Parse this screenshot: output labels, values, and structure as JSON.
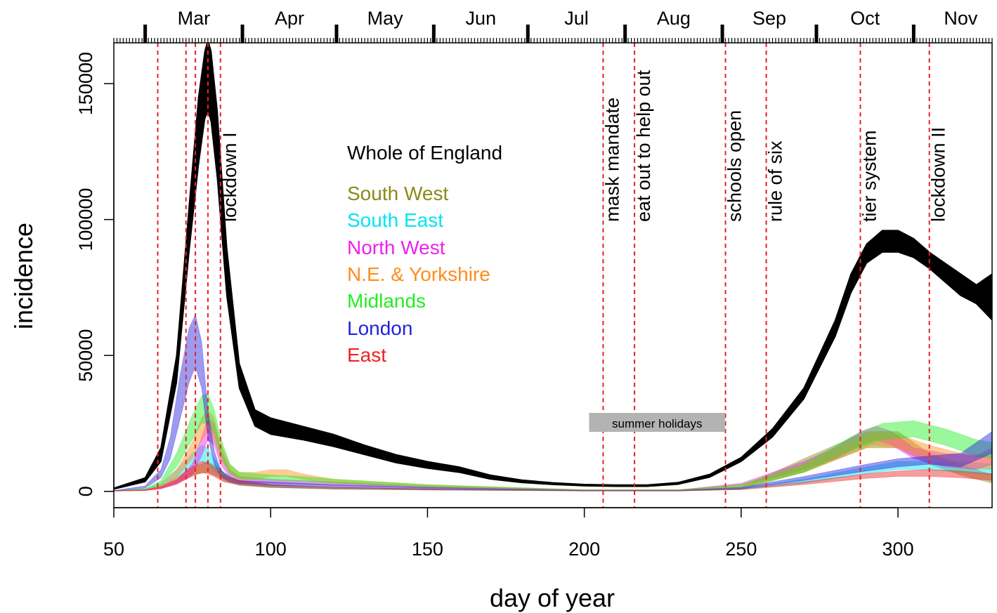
{
  "chart_data": {
    "type": "area",
    "title": "",
    "xlabel": "day of year",
    "ylabel": "incidence",
    "xlim": [
      50,
      330
    ],
    "ylim": [
      -6000,
      165000
    ],
    "x_ticks": [
      50,
      100,
      150,
      200,
      250,
      300
    ],
    "y_ticks": [
      0,
      50000,
      100000,
      150000
    ],
    "months": [
      {
        "label": "Mar",
        "start": 60
      },
      {
        "label": "Apr",
        "start": 91
      },
      {
        "label": "May",
        "start": 121
      },
      {
        "label": "Jun",
        "start": 152
      },
      {
        "label": "Jul",
        "start": 182
      },
      {
        "label": "Aug",
        "start": 213
      },
      {
        "label": "Sep",
        "start": 244
      },
      {
        "label": "Oct",
        "start": 274
      },
      {
        "label": "Nov",
        "start": 305
      }
    ],
    "events": [
      {
        "day": 64,
        "label": ""
      },
      {
        "day": 73,
        "label": ""
      },
      {
        "day": 76,
        "label": ""
      },
      {
        "day": 80,
        "label": ""
      },
      {
        "day": 84,
        "label": "lockdown I"
      },
      {
        "day": 206,
        "label": "mask mandate"
      },
      {
        "day": 216,
        "label": "eat out to help out"
      },
      {
        "day": 245,
        "label": "schools open"
      },
      {
        "day": 258,
        "label": "rule of six"
      },
      {
        "day": 288,
        "label": "tier system"
      },
      {
        "day": 310,
        "label": "lockdown II"
      }
    ],
    "shaded_period": {
      "label": "summer holidays",
      "start": 204,
      "end": 246
    },
    "legend_placement": "top-center",
    "series": [
      {
        "name": "Whole of England",
        "color": "#000000",
        "x": [
          50,
          60,
          65,
          70,
          74,
          77,
          79,
          80,
          81,
          83,
          86,
          90,
          95,
          100,
          110,
          120,
          130,
          140,
          150,
          160,
          170,
          180,
          190,
          200,
          210,
          220,
          230,
          240,
          250,
          260,
          270,
          280,
          285,
          290,
          295,
          300,
          305,
          310,
          315,
          320,
          325,
          330
        ],
        "upper": [
          1200,
          5000,
          16000,
          50000,
          105000,
          145000,
          162000,
          166000,
          162000,
          140000,
          90000,
          47000,
          30000,
          27000,
          24000,
          21000,
          17000,
          13500,
          11000,
          9000,
          6000,
          4200,
          3200,
          2600,
          2400,
          2400,
          3300,
          6300,
          12500,
          23000,
          38000,
          63000,
          80000,
          91000,
          96000,
          96000,
          93000,
          88000,
          84000,
          80000,
          76000,
          80000
        ],
        "lower": [
          800,
          3500,
          11000,
          40000,
          88000,
          120000,
          137000,
          140000,
          136000,
          115000,
          72000,
          38000,
          24000,
          21000,
          19000,
          16500,
          13500,
          10500,
          8500,
          7000,
          4500,
          3200,
          2500,
          2000,
          1800,
          1800,
          2600,
          5200,
          11000,
          20000,
          34000,
          57000,
          73000,
          84000,
          88000,
          88000,
          86000,
          82000,
          77000,
          72000,
          69000,
          63000
        ]
      },
      {
        "name": "South West",
        "color": "#8a8a1a",
        "x": [
          50,
          60,
          65,
          70,
          75,
          80,
          83,
          86,
          90,
          100,
          120,
          150,
          200,
          230,
          250,
          270,
          290,
          300,
          310,
          320,
          330
        ],
        "upper": [
          200,
          600,
          2000,
          5000,
          9000,
          11000,
          9000,
          6000,
          4000,
          2500,
          1500,
          900,
          300,
          300,
          1500,
          12000,
          22000,
          22000,
          14000,
          10000,
          6000
        ],
        "lower": [
          100,
          300,
          1200,
          3000,
          6000,
          7000,
          5500,
          3500,
          2200,
          1400,
          800,
          500,
          150,
          150,
          800,
          7000,
          16000,
          16000,
          10000,
          6000,
          3000
        ]
      },
      {
        "name": "South East",
        "color": "#00e5ee",
        "x": [
          50,
          60,
          65,
          70,
          75,
          78,
          80,
          82,
          85,
          90,
          100,
          120,
          150,
          200,
          230,
          250,
          270,
          290,
          300,
          310,
          320,
          330
        ],
        "upper": [
          200,
          800,
          3000,
          8000,
          14000,
          17000,
          16000,
          12000,
          7000,
          4000,
          2500,
          1500,
          800,
          300,
          300,
          1200,
          4500,
          9000,
          11000,
          11000,
          11000,
          10000
        ],
        "lower": [
          100,
          400,
          1800,
          5000,
          9000,
          11000,
          10000,
          7500,
          4500,
          2500,
          1500,
          900,
          500,
          150,
          150,
          700,
          3000,
          6500,
          8000,
          8000,
          7000,
          6000
        ]
      },
      {
        "name": "North West",
        "color": "#ee22ee",
        "x": [
          50,
          60,
          65,
          70,
          75,
          78,
          80,
          82,
          84,
          87,
          90,
          100,
          120,
          150,
          200,
          230,
          250,
          270,
          280,
          288,
          293,
          298,
          305,
          315,
          325,
          330
        ],
        "upper": [
          200,
          600,
          1500,
          4000,
          10000,
          20000,
          27000,
          25000,
          16000,
          8000,
          5500,
          4500,
          3500,
          2000,
          500,
          500,
          3000,
          11000,
          16000,
          22000,
          24000,
          22000,
          16000,
          14000,
          13000,
          16000
        ],
        "lower": [
          100,
          300,
          900,
          2500,
          6000,
          13000,
          19000,
          17000,
          10000,
          5000,
          3500,
          3000,
          2200,
          1200,
          250,
          250,
          2000,
          8000,
          12000,
          17000,
          19000,
          17000,
          12000,
          9000,
          8000,
          10000
        ]
      },
      {
        "name": "N.E. & Yorkshire",
        "color": "#ff8c1a",
        "x": [
          50,
          60,
          65,
          70,
          75,
          78,
          80,
          82,
          84,
          87,
          90,
          95,
          100,
          105,
          110,
          120,
          150,
          200,
          230,
          250,
          270,
          285,
          292,
          300,
          310,
          320,
          330
        ],
        "upper": [
          300,
          800,
          2500,
          8000,
          18000,
          27000,
          30000,
          27000,
          18000,
          10000,
          7000,
          7000,
          8000,
          8000,
          6500,
          4500,
          2500,
          600,
          600,
          2500,
          10000,
          18000,
          22000,
          21000,
          17000,
          14000,
          13000
        ],
        "lower": [
          150,
          500,
          1500,
          5000,
          12000,
          19000,
          22000,
          19000,
          12000,
          6500,
          4500,
          4500,
          5500,
          5500,
          4500,
          3000,
          1500,
          300,
          300,
          1500,
          7000,
          14000,
          17000,
          16000,
          12000,
          9000,
          8000
        ]
      },
      {
        "name": "Midlands",
        "color": "#22ee22",
        "x": [
          50,
          60,
          65,
          70,
          75,
          78,
          80,
          82,
          84,
          87,
          90,
          100,
          110,
          120,
          150,
          200,
          230,
          250,
          270,
          285,
          295,
          305,
          315,
          325,
          330
        ],
        "upper": [
          300,
          1000,
          4000,
          14000,
          28000,
          35000,
          36000,
          30000,
          20000,
          10000,
          7000,
          6000,
          5500,
          4500,
          2500,
          600,
          600,
          2500,
          10000,
          20000,
          25000,
          26000,
          23000,
          19000,
          18000
        ],
        "lower": [
          150,
          600,
          2500,
          9000,
          19000,
          25000,
          25000,
          21000,
          13000,
          6500,
          4500,
          4000,
          3500,
          3000,
          1500,
          300,
          300,
          1500,
          7000,
          15000,
          19000,
          20000,
          17000,
          13000,
          12000
        ]
      },
      {
        "name": "London",
        "color": "#2222dd",
        "x": [
          50,
          60,
          65,
          68,
          71,
          74,
          76,
          78,
          80,
          82,
          84,
          87,
          90,
          100,
          120,
          150,
          200,
          230,
          250,
          270,
          290,
          300,
          310,
          320,
          330
        ],
        "upper": [
          300,
          2000,
          8000,
          20000,
          42000,
          60000,
          65000,
          55000,
          30000,
          15000,
          8000,
          5000,
          4000,
          3500,
          2500,
          1500,
          400,
          400,
          1500,
          5500,
          10000,
          12000,
          13000,
          14000,
          22000
        ],
        "lower": [
          150,
          1200,
          5000,
          12000,
          26000,
          40000,
          46000,
          38000,
          20000,
          10000,
          5500,
          3500,
          2800,
          2200,
          1500,
          800,
          200,
          200,
          900,
          4000,
          7500,
          9000,
          10000,
          9000,
          14000
        ]
      },
      {
        "name": "East",
        "color": "#ee2222",
        "x": [
          50,
          60,
          65,
          70,
          75,
          78,
          80,
          82,
          85,
          90,
          100,
          120,
          150,
          200,
          230,
          250,
          270,
          290,
          300,
          310,
          320,
          330
        ],
        "upper": [
          200,
          600,
          1800,
          4500,
          9000,
          11000,
          10500,
          9000,
          6000,
          4000,
          2500,
          1500,
          900,
          300,
          300,
          1000,
          3500,
          6500,
          7500,
          8000,
          7500,
          6500
        ],
        "lower": [
          100,
          300,
          1000,
          2800,
          5500,
          7000,
          6500,
          5500,
          3500,
          2400,
          1500,
          900,
          500,
          150,
          150,
          600,
          2500,
          4800,
          5500,
          5500,
          5000,
          4000
        ]
      }
    ]
  }
}
